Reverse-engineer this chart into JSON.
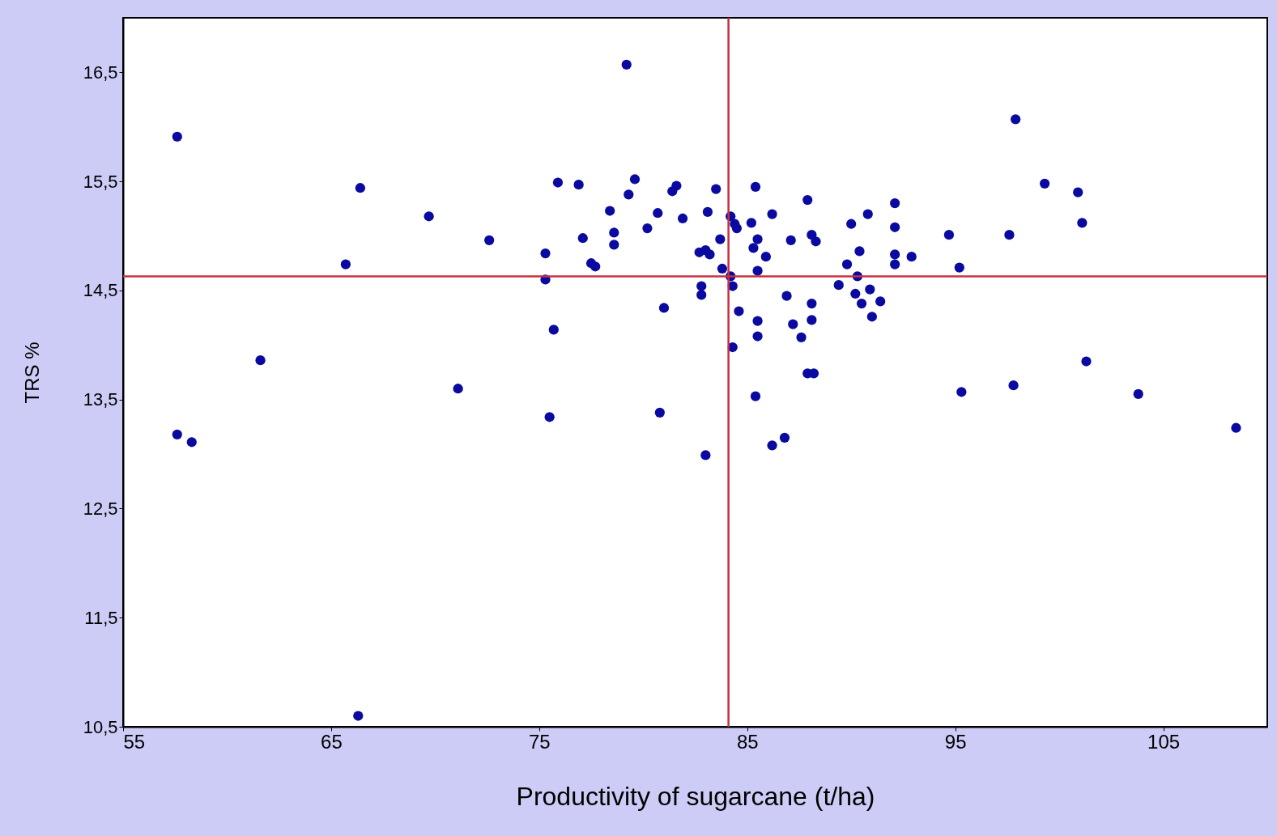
{
  "chart_data": {
    "type": "scatter",
    "xlabel": "Productivity of sugarcane (t/ha)",
    "ylabel": "TRS %",
    "xlim": [
      55,
      110
    ],
    "xticks": [
      55,
      65,
      75,
      85,
      95,
      105
    ],
    "ylim": [
      10.5,
      17
    ],
    "yticks": [
      {
        "value": 10.5,
        "label": "10,5"
      },
      {
        "value": 11.5,
        "label": "11,5"
      },
      {
        "value": 12.5,
        "label": "12,5"
      },
      {
        "value": 13.5,
        "label": "13,5"
      },
      {
        "value": 14.5,
        "label": "14,5"
      },
      {
        "value": 15.5,
        "label": "15,5"
      },
      {
        "value": 16.5,
        "label": "16,5"
      }
    ],
    "grid": false,
    "ref_lines": [
      {
        "axis": "x",
        "value": 84.1,
        "color": "#c83040"
      },
      {
        "axis": "y",
        "value": 14.63,
        "color": "#c83040"
      }
    ],
    "series": [
      {
        "color": "#0a0aa0",
        "x": [
          57.6,
          57.6,
          58.3,
          61.6,
          65.7,
          66.4,
          66.3,
          69.7,
          71.1,
          72.6,
          75.3,
          75.3,
          75.5,
          75.7,
          75.9,
          76.9,
          77.1,
          77.5,
          77.7,
          78.4,
          78.6,
          78.6,
          79.3,
          79.2,
          79.6,
          80.2,
          80.7,
          81.0,
          80.8,
          81.4,
          81.6,
          81.9,
          82.7,
          83.0,
          83.2,
          83.1,
          82.8,
          82.8,
          83.0,
          83.5,
          83.7,
          83.8,
          84.2,
          84.4,
          84.5,
          84.2,
          84.3,
          84.3,
          84.6,
          85.4,
          85.2,
          85.5,
          85.3,
          85.9,
          85.5,
          86.2,
          85.5,
          85.5,
          85.4,
          86.2,
          86.8,
          87.1,
          86.9,
          87.2,
          87.6,
          87.9,
          88.1,
          88.3,
          88.1,
          88.1,
          87.9,
          88.2,
          89.4,
          89.8,
          90.0,
          90.4,
          90.2,
          90.3,
          90.5,
          90.8,
          90.9,
          91.0,
          91.4,
          92.1,
          92.1,
          92.1,
          92.1,
          92.9,
          94.7,
          95.2,
          95.3,
          97.6,
          97.8,
          97.9,
          99.3,
          100.9,
          101.1,
          101.3,
          103.8,
          108.5
        ],
        "values": [
          15.91,
          13.18,
          13.11,
          13.86,
          14.74,
          15.44,
          10.6,
          15.18,
          13.6,
          14.96,
          14.84,
          14.6,
          13.34,
          14.14,
          15.49,
          15.47,
          14.98,
          14.75,
          14.72,
          15.23,
          15.03,
          14.92,
          15.38,
          16.57,
          15.52,
          15.07,
          15.21,
          14.34,
          13.38,
          15.41,
          15.46,
          15.16,
          14.85,
          14.87,
          14.83,
          15.22,
          14.54,
          14.46,
          12.99,
          15.43,
          14.97,
          14.7,
          15.18,
          15.11,
          15.07,
          14.63,
          14.54,
          13.98,
          14.31,
          15.45,
          15.12,
          14.97,
          14.89,
          14.81,
          14.68,
          15.2,
          14.22,
          14.08,
          13.53,
          13.08,
          13.15,
          14.96,
          14.45,
          14.19,
          14.07,
          15.33,
          15.01,
          14.95,
          14.38,
          14.23,
          13.74,
          13.74,
          14.55,
          14.74,
          15.11,
          14.86,
          14.47,
          14.63,
          14.38,
          15.2,
          14.51,
          14.26,
          14.4,
          15.3,
          15.08,
          14.83,
          14.74,
          14.81,
          15.01,
          14.71,
          13.57,
          15.01,
          13.63,
          16.07,
          15.48,
          15.4,
          15.12,
          13.85,
          13.55,
          13.24
        ]
      }
    ]
  }
}
